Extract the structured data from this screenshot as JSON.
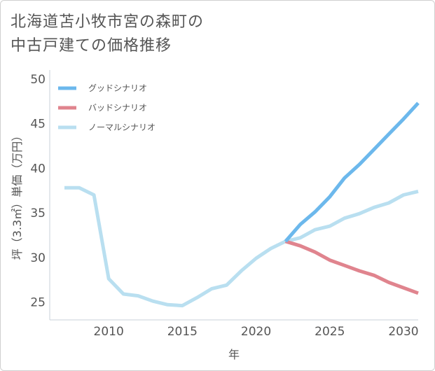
{
  "title_lines": [
    "北海道苫小牧市宮の森町の",
    "中古戸建ての価格推移"
  ],
  "chart_data": {
    "type": "line",
    "title": "北海道苫小牧市宮の森町の中古戸建ての価格推移",
    "xlabel": "年",
    "ylabel": "坪（3.3㎡）単価（万円）",
    "xlim": [
      2006,
      2031
    ],
    "ylim": [
      23,
      51
    ],
    "x_ticks": [
      2010,
      2015,
      2020,
      2025,
      2030
    ],
    "y_ticks": [
      25,
      30,
      35,
      40,
      45,
      50
    ],
    "grid": true,
    "legend_position": "top-left",
    "series": [
      {
        "name": "グッドシナリオ",
        "color": "#6cb8ec",
        "x": [
          2022,
          2023,
          2024,
          2025,
          2026,
          2027,
          2028,
          2029,
          2030,
          2031
        ],
        "y": [
          31.8,
          33.7,
          35.1,
          36.8,
          38.9,
          40.4,
          42.1,
          43.8,
          45.5,
          47.3
        ]
      },
      {
        "name": "バッドシナリオ",
        "color": "#e0848e",
        "x": [
          2022,
          2023,
          2024,
          2025,
          2026,
          2027,
          2028,
          2029,
          2030,
          2031
        ],
        "y": [
          31.8,
          31.3,
          30.6,
          29.7,
          29.1,
          28.5,
          28.0,
          27.2,
          26.6,
          26.0
        ]
      },
      {
        "name": "ノーマルシナリオ",
        "color": "#b9dff0",
        "x": [
          2007,
          2008,
          2009,
          2010,
          2011,
          2012,
          2013,
          2014,
          2015,
          2016,
          2017,
          2018,
          2019,
          2020,
          2021,
          2022,
          2023,
          2024,
          2025,
          2026,
          2027,
          2028,
          2029,
          2030,
          2031
        ],
        "y": [
          37.8,
          37.8,
          37.0,
          27.6,
          25.9,
          25.7,
          25.1,
          24.7,
          24.6,
          25.5,
          26.5,
          26.9,
          28.5,
          29.9,
          31.0,
          31.8,
          32.2,
          33.1,
          33.5,
          34.4,
          34.9,
          35.6,
          36.1,
          37.0,
          37.4
        ]
      }
    ]
  }
}
